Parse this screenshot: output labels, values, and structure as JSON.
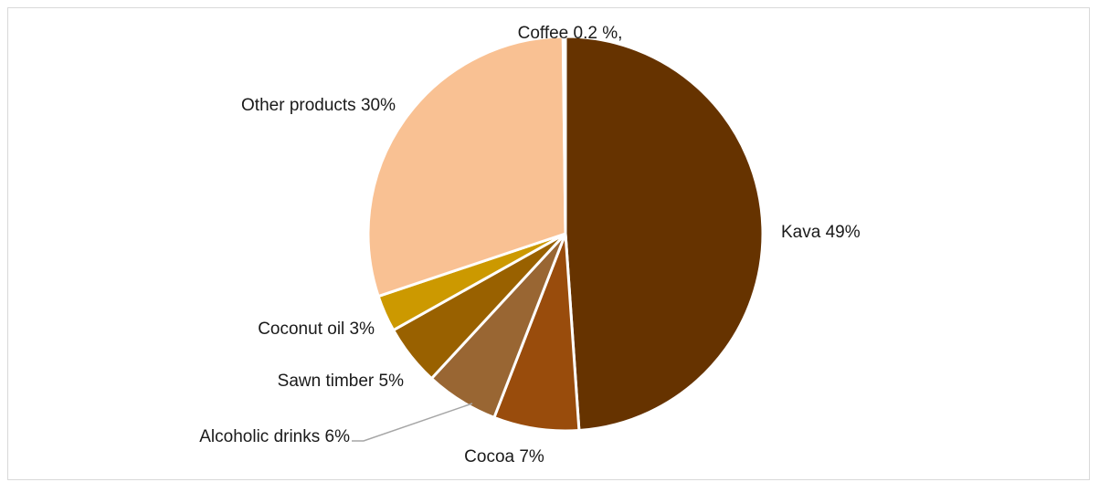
{
  "chart_data": {
    "type": "pie",
    "title": "",
    "slices": [
      {
        "name": "Kava",
        "value": 49,
        "label": "Kava 49%",
        "color": "#663300"
      },
      {
        "name": "Cocoa",
        "value": 7,
        "label": "Cocoa 7%",
        "color": "#994c0c"
      },
      {
        "name": "Alcoholic drinks",
        "value": 6,
        "label": "Alcoholic drinks  6%",
        "color": "#996633"
      },
      {
        "name": "Sawn timber",
        "value": 5,
        "label": "Sawn timber  5%",
        "color": "#996100"
      },
      {
        "name": "Coconut oil",
        "value": 3,
        "label": "Coconut oil  3%",
        "color": "#cc9900"
      },
      {
        "name": "Other products",
        "value": 30,
        "label": "Other products 30%",
        "color": "#f9c193"
      },
      {
        "name": "Coffee",
        "value": 0.2,
        "label": "Coffee 0.2 %,",
        "color": "#ffe7cc"
      }
    ],
    "legend": "none",
    "slice_border_color": "#ffffff",
    "leader_line_color": "#a6a6a6"
  }
}
